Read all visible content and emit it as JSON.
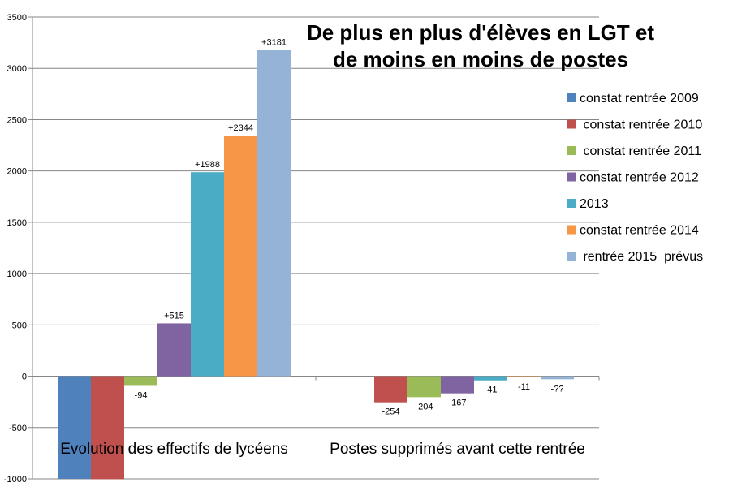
{
  "chart_data": {
    "type": "bar",
    "title_lines": [
      "De plus en plus d'élèves en LGT et",
      "de moins en moins de postes"
    ],
    "categories": [
      "Evolution des effectifs de lycéens",
      "Postes supprimés avant cette rentrée"
    ],
    "series": [
      {
        "name": "constat rentrée 2009",
        "color": "#4F81BD",
        "values": [
          -1000,
          0
        ],
        "labels": [
          "",
          ""
        ]
      },
      {
        "name": " constat rentrée 2010",
        "color": "#C0504D",
        "values": [
          -1003,
          -254
        ],
        "labels": [
          "",
          "-254"
        ]
      },
      {
        "name": " constat rentrée 2011",
        "color": "#9BBB59",
        "values": [
          -94,
          -204
        ],
        "labels": [
          "-94",
          "-204"
        ]
      },
      {
        "name": "constat rentrée 2012",
        "color": "#8064A2",
        "values": [
          515,
          -167
        ],
        "labels": [
          "+515",
          "-167"
        ]
      },
      {
        "name": "2013",
        "color": "#4BACC6",
        "values": [
          1988,
          -41
        ],
        "labels": [
          "+1988",
          "-41"
        ]
      },
      {
        "name": "constat rentrée 2014",
        "color": "#F79646",
        "values": [
          2344,
          -11
        ],
        "labels": [
          "+2344",
          "-11"
        ]
      },
      {
        "name": " rentrée 2015  prévus",
        "color": "#95B3D7",
        "values": [
          3181,
          -30
        ],
        "labels": [
          "+3181",
          "-??"
        ]
      }
    ],
    "yticks": [
      -1000,
      -500,
      0,
      500,
      1000,
      1500,
      2000,
      2500,
      3000,
      3500
    ],
    "ytick_labels": [
      "-1000",
      "-500",
      "0",
      "500",
      "1000",
      "1500",
      "2000",
      "2500",
      "3000",
      "3500"
    ],
    "ylim": [
      -1000,
      3500
    ],
    "grid": true,
    "legend_position": "right"
  }
}
